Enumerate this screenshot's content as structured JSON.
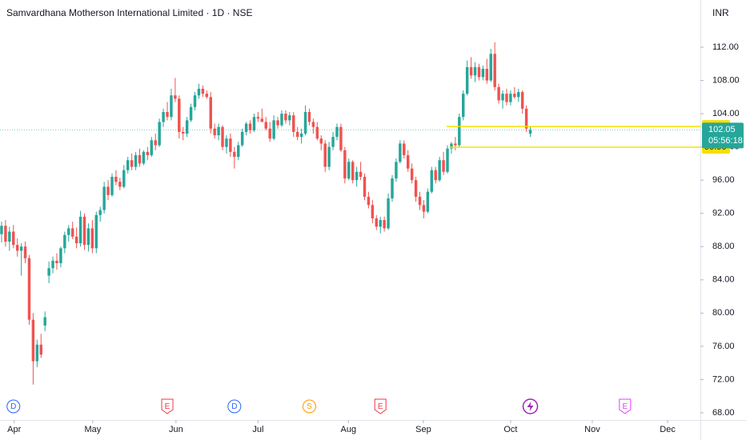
{
  "chart_data": {
    "type": "candlestick",
    "title": "Samvardhana Motherson International Limited · 1D · NSE",
    "currency": "INR",
    "up_color": "#26a69a",
    "down_color": "#ef5350",
    "level_color": "#f5e000",
    "ylim": [
      67.13,
      117.68
    ],
    "xlim": [
      -0.4,
      177.1
    ],
    "yticks": [
      {
        "value": 68,
        "label": "68.00"
      },
      {
        "value": 72,
        "label": "72.00"
      },
      {
        "value": 76,
        "label": "76.00"
      },
      {
        "value": 80,
        "label": "80.00"
      },
      {
        "value": 84,
        "label": "84.00"
      },
      {
        "value": 88,
        "label": "88.00"
      },
      {
        "value": 92,
        "label": "92.00"
      },
      {
        "value": 96,
        "label": "96.00"
      },
      {
        "value": 100,
        "label": "100.00"
      },
      {
        "value": 104,
        "label": "104.00"
      },
      {
        "value": 108,
        "label": "108.00"
      },
      {
        "value": 112,
        "label": "112.00"
      }
    ],
    "xticks": [
      {
        "value": 3.2,
        "label": "Apr"
      },
      {
        "value": 23.1,
        "label": "May"
      },
      {
        "value": 44.2,
        "label": "Jun"
      },
      {
        "value": 65,
        "label": "Jul"
      },
      {
        "value": 87.9,
        "label": "Aug"
      },
      {
        "value": 106.9,
        "label": "Sep"
      },
      {
        "value": 129,
        "label": "Oct"
      },
      {
        "value": 149.7,
        "label": "Nov"
      },
      {
        "value": 168.8,
        "label": "Dec"
      }
    ],
    "price_line": {
      "value": 102.05,
      "countdown": "05:56:18"
    },
    "levels": [
      {
        "value": 102.46,
        "start": 112.8
      },
      {
        "value": 99.96,
        "start": 113.6
      }
    ],
    "events": [
      {
        "x": 3,
        "label": "D",
        "color": "#2962ff"
      },
      {
        "x": 42,
        "label": "E",
        "color": "#f23645"
      },
      {
        "x": 59,
        "label": "D",
        "color": "#2962ff"
      },
      {
        "x": 78,
        "label": "S",
        "color": "#ff9800"
      },
      {
        "x": 96,
        "label": "E",
        "color": "#f23645"
      },
      {
        "x": 134,
        "color": "#9c27b0"
      },
      {
        "x": 158,
        "label": "E",
        "color": "#e040fb"
      }
    ],
    "candles": [
      [
        89.5,
        91.0,
        88.5,
        90.5
      ],
      [
        90.5,
        91.2,
        88.0,
        88.6
      ],
      [
        88.6,
        90.4,
        87.5,
        89.8
      ],
      [
        89.8,
        90.6,
        87.8,
        88.2
      ],
      [
        88.2,
        89.0,
        86.8,
        87.5
      ],
      [
        87.5,
        88.4,
        84.5,
        88.0
      ],
      [
        88.0,
        88.6,
        86.0,
        86.6
      ],
      [
        86.6,
        87.0,
        78.6,
        79.2
      ],
      [
        79.2,
        80.0,
        71.4,
        74.2
      ],
      [
        74.2,
        76.8,
        73.5,
        76.2
      ],
      [
        76.2,
        77.5,
        74.6,
        75.0
      ],
      [
        78.5,
        80.2,
        77.8,
        79.5
      ],
      [
        84.5,
        86.2,
        83.6,
        85.4
      ],
      [
        85.4,
        86.8,
        84.8,
        86.3
      ],
      [
        86.3,
        87.2,
        85.2,
        86.0
      ],
      [
        86.0,
        88.0,
        85.5,
        87.8
      ],
      [
        87.8,
        89.8,
        87.2,
        89.4
      ],
      [
        89.4,
        90.6,
        88.6,
        90.2
      ],
      [
        90.2,
        91.0,
        88.9,
        89.2
      ],
      [
        89.2,
        90.3,
        87.8,
        88.4
      ],
      [
        88.4,
        92.3,
        88.0,
        91.6
      ],
      [
        91.6,
        92.0,
        87.6,
        88.2
      ],
      [
        88.2,
        90.8,
        87.4,
        90.2
      ],
      [
        90.2,
        91.2,
        87.2,
        87.8
      ],
      [
        87.8,
        92.2,
        87.2,
        91.8
      ],
      [
        91.8,
        92.8,
        91.0,
        92.4
      ],
      [
        92.4,
        95.8,
        92.0,
        95.2
      ],
      [
        95.2,
        96.0,
        93.6,
        94.2
      ],
      [
        94.2,
        96.8,
        94.0,
        96.4
      ],
      [
        96.4,
        97.2,
        95.4,
        95.8
      ],
      [
        95.8,
        96.3,
        94.8,
        95.2
      ],
      [
        95.2,
        97.8,
        95.0,
        97.2
      ],
      [
        97.2,
        98.8,
        96.8,
        98.4
      ],
      [
        98.4,
        99.2,
        97.2,
        97.6
      ],
      [
        97.6,
        99.4,
        97.2,
        99.0
      ],
      [
        99.0,
        99.8,
        97.6,
        98.0
      ],
      [
        98.0,
        99.6,
        97.8,
        99.4
      ],
      [
        99.4,
        100.0,
        98.4,
        99.0
      ],
      [
        99.0,
        101.2,
        98.8,
        100.8
      ],
      [
        100.8,
        101.6,
        99.6,
        100.2
      ],
      [
        100.2,
        103.4,
        100.0,
        103.0
      ],
      [
        103.0,
        104.6,
        102.4,
        104.2
      ],
      [
        104.2,
        105.4,
        103.2,
        103.6
      ],
      [
        103.6,
        107.0,
        103.2,
        106.2
      ],
      [
        106.2,
        108.3,
        105.4,
        105.8
      ],
      [
        105.8,
        106.2,
        101.0,
        101.8
      ],
      [
        101.8,
        102.4,
        100.8,
        101.6
      ],
      [
        101.6,
        103.6,
        101.2,
        103.2
      ],
      [
        103.2,
        105.2,
        103.0,
        104.8
      ],
      [
        104.8,
        106.6,
        104.4,
        106.2
      ],
      [
        106.2,
        107.6,
        105.8,
        107.0
      ],
      [
        107.0,
        107.4,
        106.0,
        106.4
      ],
      [
        106.4,
        106.8,
        105.8,
        106.0
      ],
      [
        106.0,
        106.6,
        101.6,
        102.2
      ],
      [
        102.2,
        102.8,
        101.0,
        101.4
      ],
      [
        101.4,
        102.8,
        100.8,
        102.4
      ],
      [
        102.4,
        102.6,
        99.6,
        100.0
      ],
      [
        100.0,
        101.4,
        99.2,
        101.0
      ],
      [
        101.0,
        101.6,
        98.8,
        99.4
      ],
      [
        99.4,
        100.0,
        97.4,
        98.8
      ],
      [
        98.8,
        100.6,
        98.4,
        100.2
      ],
      [
        100.2,
        102.2,
        100.0,
        101.8
      ],
      [
        101.8,
        103.0,
        101.4,
        102.8
      ],
      [
        102.8,
        103.2,
        101.6,
        102.0
      ],
      [
        102.0,
        104.0,
        101.8,
        103.6
      ],
      [
        103.6,
        104.2,
        103.0,
        103.4
      ],
      [
        103.4,
        104.6,
        103.0,
        103.0
      ],
      [
        103.0,
        103.6,
        102.0,
        102.2
      ],
      [
        102.2,
        103.0,
        100.6,
        101.0
      ],
      [
        101.0,
        103.8,
        100.8,
        103.2
      ],
      [
        103.2,
        103.6,
        102.2,
        102.6
      ],
      [
        102.6,
        104.4,
        102.4,
        104.0
      ],
      [
        104.0,
        104.4,
        102.8,
        103.2
      ],
      [
        103.2,
        104.2,
        102.6,
        103.8
      ],
      [
        103.8,
        104.2,
        101.2,
        101.8
      ],
      [
        101.8,
        102.4,
        100.8,
        101.2
      ],
      [
        101.2,
        102.2,
        100.4,
        101.6
      ],
      [
        101.6,
        105.0,
        101.4,
        104.2
      ],
      [
        104.2,
        104.6,
        102.6,
        103.0
      ],
      [
        103.0,
        103.4,
        101.6,
        102.4
      ],
      [
        102.4,
        103.0,
        100.8,
        101.0
      ],
      [
        101.0,
        101.4,
        99.6,
        100.4
      ],
      [
        100.4,
        100.8,
        97.0,
        97.6
      ],
      [
        97.6,
        100.6,
        97.2,
        100.0
      ],
      [
        100.0,
        101.8,
        99.6,
        101.2
      ],
      [
        101.2,
        102.8,
        100.8,
        102.4
      ],
      [
        102.4,
        102.8,
        99.4,
        99.6
      ],
      [
        99.6,
        100.0,
        95.6,
        96.2
      ],
      [
        96.2,
        98.6,
        96.0,
        98.2
      ],
      [
        98.2,
        98.4,
        95.6,
        96.0
      ],
      [
        96.0,
        97.6,
        95.2,
        97.0
      ],
      [
        97.0,
        98.2,
        96.0,
        96.4
      ],
      [
        96.4,
        96.8,
        93.6,
        94.0
      ],
      [
        94.0,
        94.6,
        92.6,
        93.0
      ],
      [
        93.0,
        93.6,
        90.8,
        91.4
      ],
      [
        91.4,
        91.8,
        90.0,
        90.4
      ],
      [
        90.4,
        91.6,
        89.6,
        91.2
      ],
      [
        91.2,
        91.6,
        89.8,
        90.2
      ],
      [
        90.2,
        94.4,
        90.0,
        93.8
      ],
      [
        93.8,
        96.6,
        93.4,
        96.2
      ],
      [
        96.2,
        98.6,
        95.8,
        98.2
      ],
      [
        98.2,
        100.8,
        98.0,
        100.4
      ],
      [
        100.4,
        100.8,
        98.6,
        99.0
      ],
      [
        99.0,
        99.6,
        97.0,
        97.4
      ],
      [
        97.4,
        98.0,
        95.6,
        96.0
      ],
      [
        96.0,
        96.4,
        93.4,
        94.0
      ],
      [
        94.0,
        94.6,
        92.4,
        93.0
      ],
      [
        93.0,
        93.6,
        91.4,
        92.2
      ],
      [
        92.2,
        95.0,
        92.0,
        94.6
      ],
      [
        94.6,
        97.6,
        94.4,
        97.2
      ],
      [
        97.2,
        97.6,
        95.6,
        96.0
      ],
      [
        96.0,
        98.8,
        95.8,
        98.4
      ],
      [
        98.4,
        99.4,
        96.6,
        97.0
      ],
      [
        97.0,
        100.2,
        96.8,
        99.8
      ],
      [
        99.8,
        100.6,
        99.2,
        100.4
      ],
      [
        100.4,
        101.2,
        99.6,
        100.2
      ],
      [
        100.2,
        104.0,
        100.0,
        103.6
      ],
      [
        103.6,
        106.8,
        103.2,
        106.4
      ],
      [
        106.4,
        110.4,
        106.2,
        109.6
      ],
      [
        109.6,
        110.8,
        108.2,
        108.6
      ],
      [
        108.6,
        110.2,
        107.8,
        109.6
      ],
      [
        109.6,
        110.0,
        108.0,
        108.4
      ],
      [
        108.4,
        109.8,
        108.0,
        109.4
      ],
      [
        109.4,
        110.6,
        107.6,
        108.0
      ],
      [
        108.0,
        111.8,
        107.8,
        111.2
      ],
      [
        111.2,
        112.6,
        106.8,
        107.2
      ],
      [
        107.2,
        107.6,
        105.2,
        105.6
      ],
      [
        105.6,
        106.8,
        104.6,
        106.4
      ],
      [
        106.4,
        107.0,
        105.0,
        105.4
      ],
      [
        105.4,
        106.8,
        105.0,
        106.4
      ],
      [
        106.4,
        107.2,
        105.8,
        106.0
      ],
      [
        106.0,
        107.0,
        105.4,
        106.6
      ],
      [
        106.6,
        106.8,
        104.0,
        104.6
      ],
      [
        104.6,
        105.0,
        101.8,
        102.2
      ],
      [
        101.6,
        102.4,
        101.2,
        102.05
      ]
    ]
  }
}
